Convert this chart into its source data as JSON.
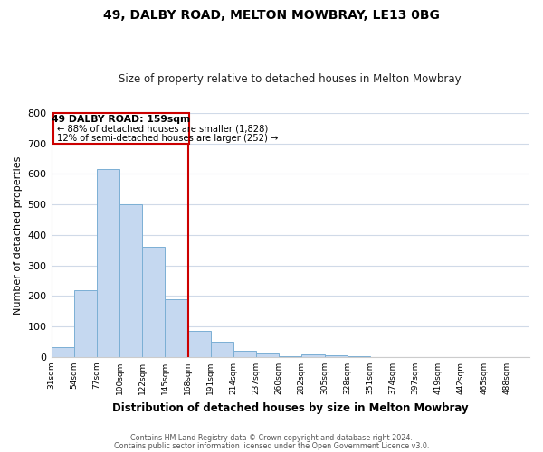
{
  "title": "49, DALBY ROAD, MELTON MOWBRAY, LE13 0BG",
  "subtitle": "Size of property relative to detached houses in Melton Mowbray",
  "xlabel": "Distribution of detached houses by size in Melton Mowbray",
  "ylabel": "Number of detached properties",
  "bin_labels": [
    "31sqm",
    "54sqm",
    "77sqm",
    "100sqm",
    "122sqm",
    "145sqm",
    "168sqm",
    "191sqm",
    "214sqm",
    "237sqm",
    "260sqm",
    "282sqm",
    "305sqm",
    "328sqm",
    "351sqm",
    "374sqm",
    "397sqm",
    "419sqm",
    "442sqm",
    "465sqm",
    "488sqm"
  ],
  "bar_heights": [
    32,
    220,
    615,
    500,
    360,
    190,
    85,
    50,
    22,
    13,
    2,
    8,
    5,
    2,
    0,
    0,
    0,
    0,
    0,
    0,
    0
  ],
  "bar_color": "#c5d8f0",
  "bar_edge_color": "#7bafd4",
  "vline_color": "#cc0000",
  "ylim": [
    0,
    800
  ],
  "yticks": [
    0,
    100,
    200,
    300,
    400,
    500,
    600,
    700,
    800
  ],
  "annotation_title": "49 DALBY ROAD: 159sqm",
  "annotation_line1": "← 88% of detached houses are smaller (1,828)",
  "annotation_line2": "12% of semi-detached houses are larger (252) →",
  "annotation_box_color": "#cc0000",
  "footer_line1": "Contains HM Land Registry data © Crown copyright and database right 2024.",
  "footer_line2": "Contains public sector information licensed under the Open Government Licence v3.0.",
  "background_color": "#ffffff",
  "grid_color": "#d0dae8"
}
